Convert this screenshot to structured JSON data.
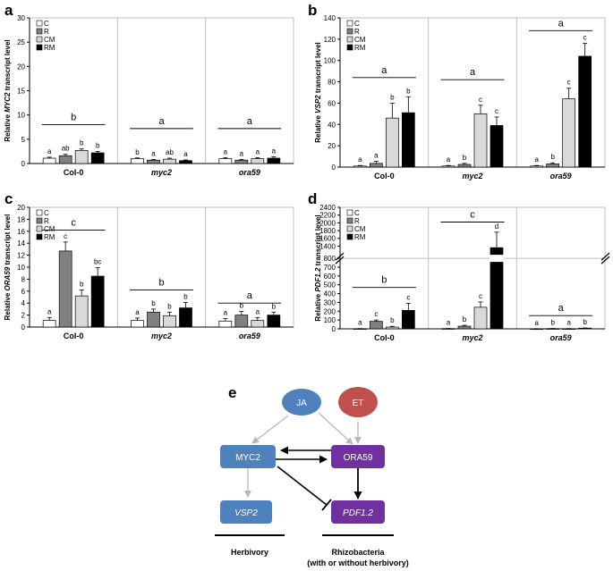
{
  "chart_data": [
    {
      "panel": "a",
      "type": "bar",
      "ylabel": {
        "pre": "Relative ",
        "gene": "MYC2",
        "post": " transcript level"
      },
      "ylim": [
        0,
        30
      ],
      "yticks": [
        0,
        5,
        10,
        15,
        20,
        25,
        30
      ],
      "categories": [
        "Col-0",
        "myc2",
        "ora59"
      ],
      "series": [
        {
          "name": "C",
          "color": "#ffffff",
          "values": [
            1.1,
            1.0,
            1.0
          ],
          "errors": [
            0.2,
            0.15,
            0.2
          ],
          "sig": [
            "a",
            "b",
            "a"
          ]
        },
        {
          "name": "R",
          "color": "#808080",
          "values": [
            1.6,
            0.7,
            0.7
          ],
          "errors": [
            0.3,
            0.15,
            0.15
          ],
          "sig": [
            "ab",
            "a",
            "a"
          ]
        },
        {
          "name": "CM",
          "color": "#d9d9d9",
          "values": [
            2.7,
            0.9,
            1.0
          ],
          "errors": [
            0.3,
            0.2,
            0.2
          ],
          "sig": [
            "b",
            "ab",
            "a"
          ]
        },
        {
          "name": "RM",
          "color": "#000000",
          "values": [
            2.2,
            0.6,
            1.1
          ],
          "errors": [
            0.3,
            0.15,
            0.3
          ],
          "sig": [
            "b",
            "a",
            "a"
          ]
        }
      ],
      "group_sig": [
        "b",
        "a",
        "a"
      ],
      "group_line": [
        8.0,
        7.2,
        7.2
      ]
    },
    {
      "panel": "b",
      "type": "bar",
      "ylabel": {
        "pre": "Relative ",
        "gene": "VSP2",
        "post": " transcript level"
      },
      "ylim": [
        0,
        140
      ],
      "yticks": [
        0,
        20,
        40,
        60,
        80,
        100,
        120,
        140
      ],
      "categories": [
        "Col-0",
        "myc2",
        "ora59"
      ],
      "series": [
        {
          "name": "C",
          "color": "#ffffff",
          "values": [
            1,
            1,
            1
          ],
          "errors": [
            0.5,
            0.5,
            0.5
          ],
          "sig": [
            "a",
            "a",
            "a"
          ]
        },
        {
          "name": "R",
          "color": "#808080",
          "values": [
            3.5,
            2.5,
            3
          ],
          "errors": [
            2,
            1,
            1
          ],
          "sig": [
            "a",
            "b",
            "b"
          ]
        },
        {
          "name": "CM",
          "color": "#d9d9d9",
          "values": [
            46,
            50,
            64
          ],
          "errors": [
            14,
            8,
            10
          ],
          "sig": [
            "b",
            "c",
            "c"
          ]
        },
        {
          "name": "RM",
          "color": "#000000",
          "values": [
            51,
            39,
            104
          ],
          "errors": [
            15,
            8,
            12
          ],
          "sig": [
            "b",
            "c",
            "c"
          ]
        }
      ],
      "group_sig": [
        "a",
        "a",
        "a"
      ],
      "group_line": [
        84,
        82,
        128
      ]
    },
    {
      "panel": "c",
      "type": "bar",
      "ylabel": {
        "pre": "Relative ",
        "gene": "ORA59",
        "post": " transcript level"
      },
      "ylim": [
        0,
        20
      ],
      "yticks": [
        0,
        2,
        4,
        6,
        8,
        10,
        12,
        14,
        16,
        18,
        20
      ],
      "categories": [
        "Col-0",
        "myc2",
        "ora59"
      ],
      "series": [
        {
          "name": "C",
          "color": "#ffffff",
          "values": [
            1.1,
            1.1,
            1.0
          ],
          "errors": [
            0.5,
            0.4,
            0.4
          ],
          "sig": [
            "a",
            "a",
            "a"
          ]
        },
        {
          "name": "R",
          "color": "#808080",
          "values": [
            12.7,
            2.5,
            2.0
          ],
          "errors": [
            1.5,
            0.5,
            0.6
          ],
          "sig": [
            "c",
            "b",
            "b"
          ]
        },
        {
          "name": "CM",
          "color": "#d9d9d9",
          "values": [
            5.2,
            1.9,
            1.1
          ],
          "errors": [
            1.0,
            0.6,
            0.5
          ],
          "sig": [
            "b",
            "b",
            "a"
          ]
        },
        {
          "name": "RM",
          "color": "#000000",
          "values": [
            8.5,
            3.2,
            2.0
          ],
          "errors": [
            1.4,
            0.9,
            0.5
          ],
          "sig": [
            "bc",
            "b",
            "b"
          ]
        }
      ],
      "group_sig": [
        "c",
        "b",
        "a"
      ],
      "group_line": [
        16.2,
        6.2,
        4.0
      ]
    },
    {
      "panel": "d",
      "type": "bar",
      "ylabel": {
        "pre": "Relative ",
        "gene": "PDF1.2",
        "post": " transcript level"
      },
      "broken_axis": true,
      "lower_range": [
        0,
        800
      ],
      "lower_ticks": [
        0,
        100,
        200,
        300,
        400,
        500,
        600,
        700,
        800
      ],
      "upper_range": [
        1200,
        2400
      ],
      "upper_ticks": [
        1400,
        1600,
        1800,
        2000,
        2200,
        2400
      ],
      "categories": [
        "Col-0",
        "myc2",
        "ora59"
      ],
      "series": [
        {
          "name": "C",
          "color": "#ffffff",
          "values": [
            2,
            3,
            1
          ],
          "errors": [
            1,
            1,
            1
          ],
          "sig": [
            "a",
            "a",
            "a"
          ]
        },
        {
          "name": "R",
          "color": "#808080",
          "values": [
            85,
            30,
            3
          ],
          "errors": [
            15,
            10,
            1
          ],
          "sig": [
            "c",
            "b",
            "b"
          ]
        },
        {
          "name": "CM",
          "color": "#d9d9d9",
          "values": [
            20,
            245,
            2
          ],
          "errors": [
            8,
            60,
            1
          ],
          "sig": [
            "b",
            "c",
            "a"
          ]
        },
        {
          "name": "RM",
          "color": "#000000",
          "values": [
            210,
            1360,
            8
          ],
          "errors": [
            80,
            400,
            2
          ],
          "sig": [
            "c",
            "d",
            "b"
          ]
        }
      ],
      "group_sig": [
        "b",
        "c",
        "a"
      ],
      "group_line": [
        470,
        2020,
        150
      ]
    }
  ],
  "diagram": {
    "label": "e",
    "nodes": {
      "ja": "JA",
      "et": "ET",
      "myc2": "MYC2",
      "ora59": "ORA59",
      "vsp2": "VSP2",
      "pdf12": "PDF1.2"
    },
    "roles": {
      "herbivory": "Herbivory",
      "rhizo_line1": "Rhizobacteria",
      "rhizo_line2": "(with or without herbivory)"
    },
    "colors": {
      "blue": "#4f81bd",
      "red": "#c0504d",
      "purple": "#7030a0"
    }
  }
}
